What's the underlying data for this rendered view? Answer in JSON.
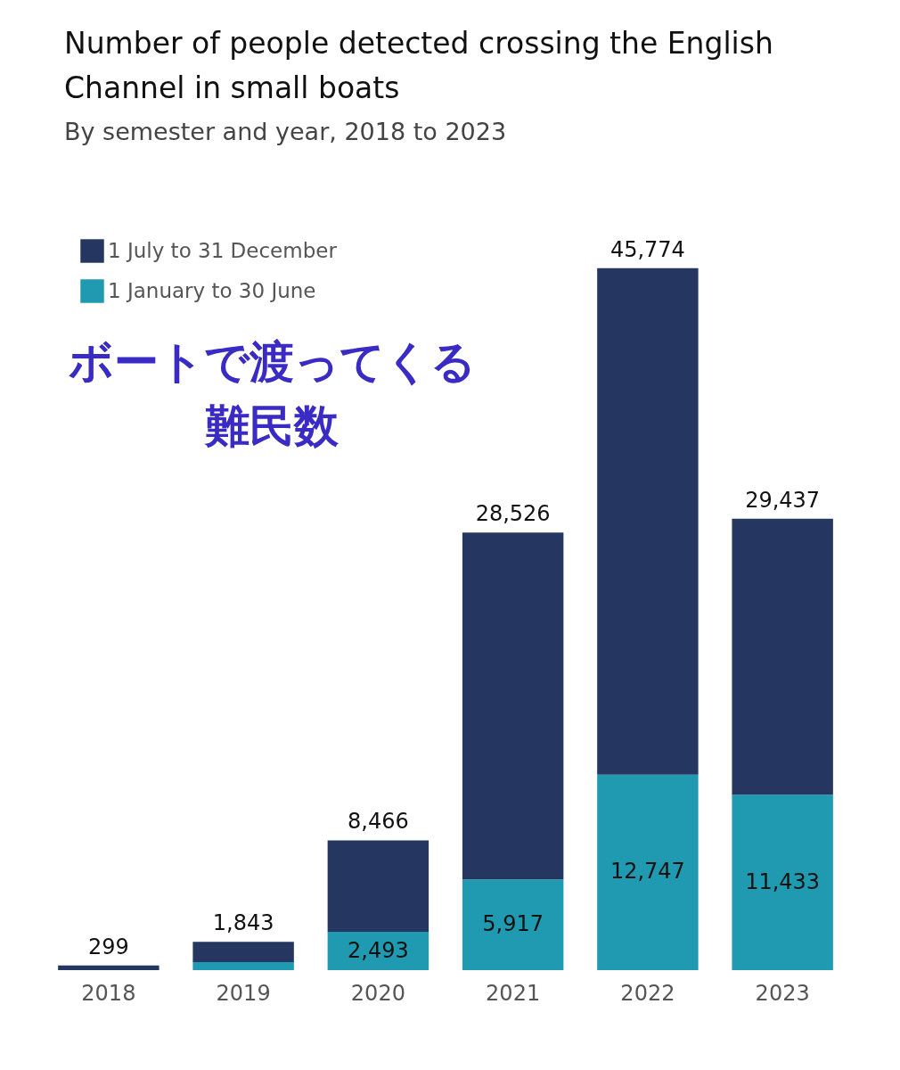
{
  "chart_data": {
    "type": "bar",
    "title": "Number of people detected crossing the English Channel in small boats",
    "subtitle": "By semester and year, 2018 to 2023",
    "categories": [
      "2018",
      "2019",
      "2020",
      "2021",
      "2022",
      "2023"
    ],
    "stacked": true,
    "legend": "top left",
    "series": [
      {
        "name": "1 January to 30 June",
        "color": "#1f9ab0",
        "values": [
          0,
          520,
          2493,
          5917,
          12747,
          11433
        ],
        "value_labels": [
          null,
          null,
          "2,493",
          "5,917",
          "12,747",
          "11,433"
        ]
      },
      {
        "name": "1 July to 31 December",
        "color": "#253761",
        "values": [
          299,
          1323,
          5973,
          22609,
          33027,
          18004
        ]
      }
    ],
    "totals": [
      "299",
      "1,843",
      "8,466",
      "28,526",
      "45,774",
      "29,437"
    ],
    "annotations": [
      "ボートで渡ってくる",
      "難民数"
    ]
  }
}
